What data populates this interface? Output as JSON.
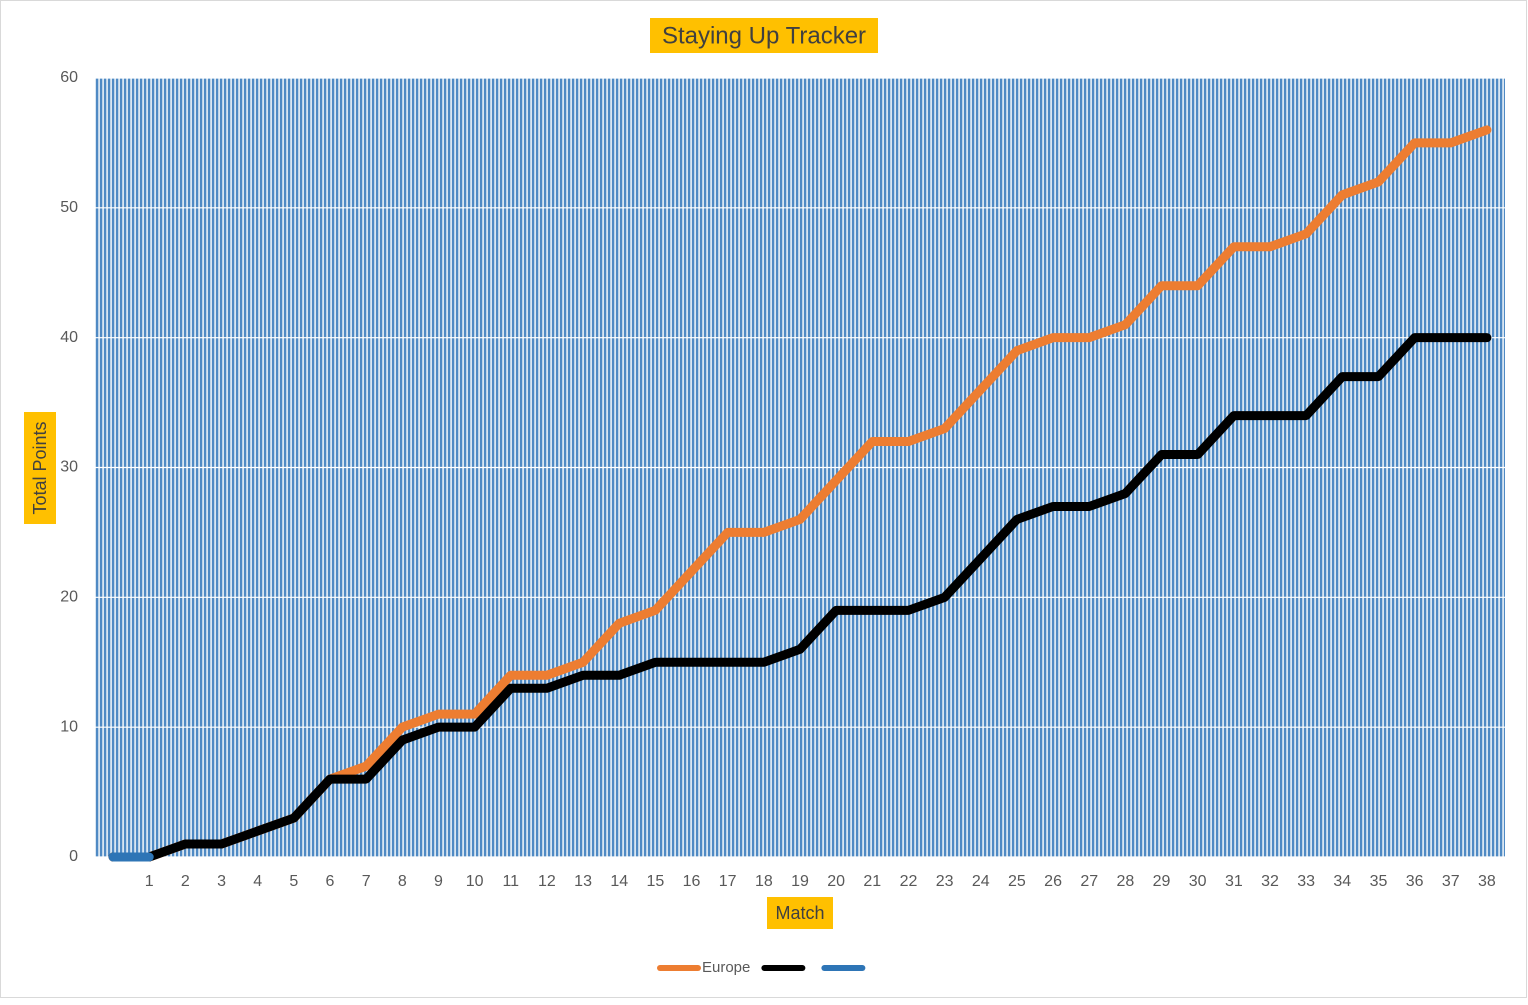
{
  "chart_data": {
    "type": "line",
    "title": "Staying Up Tracker",
    "x_label": "Match",
    "y_label": "Total Points",
    "categories": [
      null,
      "1",
      "2",
      "3",
      "4",
      "5",
      "6",
      "7",
      "8",
      "9",
      "10",
      "11",
      "12",
      "13",
      "14",
      "15",
      "16",
      "17",
      "18",
      "19",
      "20",
      "21",
      "22",
      "23",
      "24",
      "25",
      "26",
      "27",
      "28",
      "29",
      "30",
      "31",
      "32",
      "33",
      "34",
      "35",
      "36",
      "37",
      "38"
    ],
    "series": [
      {
        "name": "Europe",
        "color": "#ed7d31",
        "values": [
          0,
          0,
          1,
          1,
          2,
          3,
          6,
          7,
          10,
          11,
          11,
          14,
          14,
          15,
          18,
          19,
          22,
          25,
          25,
          26,
          29,
          32,
          32,
          33,
          36,
          39,
          40,
          40,
          41,
          44,
          44,
          47,
          47,
          48,
          51,
          52,
          55,
          55,
          56
        ]
      },
      {
        "color": "#000000",
        "values": [
          0,
          0,
          1,
          1,
          2,
          3,
          6,
          6,
          9,
          10,
          10,
          13,
          13,
          14,
          14,
          15,
          15,
          15,
          15,
          16,
          19,
          19,
          19,
          20,
          23,
          26,
          27,
          27,
          28,
          31,
          31,
          34,
          34,
          34,
          37,
          37,
          40,
          40,
          40
        ]
      },
      {
        "color": "#2e75b6",
        "values": [
          0,
          0,
          null,
          null,
          null,
          null,
          null,
          null,
          null,
          null,
          null,
          null,
          null,
          null,
          null,
          null,
          null,
          null,
          null,
          null,
          null,
          null,
          null,
          null,
          null,
          null,
          null,
          null,
          null,
          null,
          null,
          null,
          null,
          null,
          null,
          null,
          null,
          null,
          null
        ]
      }
    ],
    "ylim": [
      0,
      60
    ],
    "yticks": [
      0,
      10,
      20,
      30,
      40,
      50,
      60
    ],
    "grid": true,
    "legend": "bottom"
  }
}
